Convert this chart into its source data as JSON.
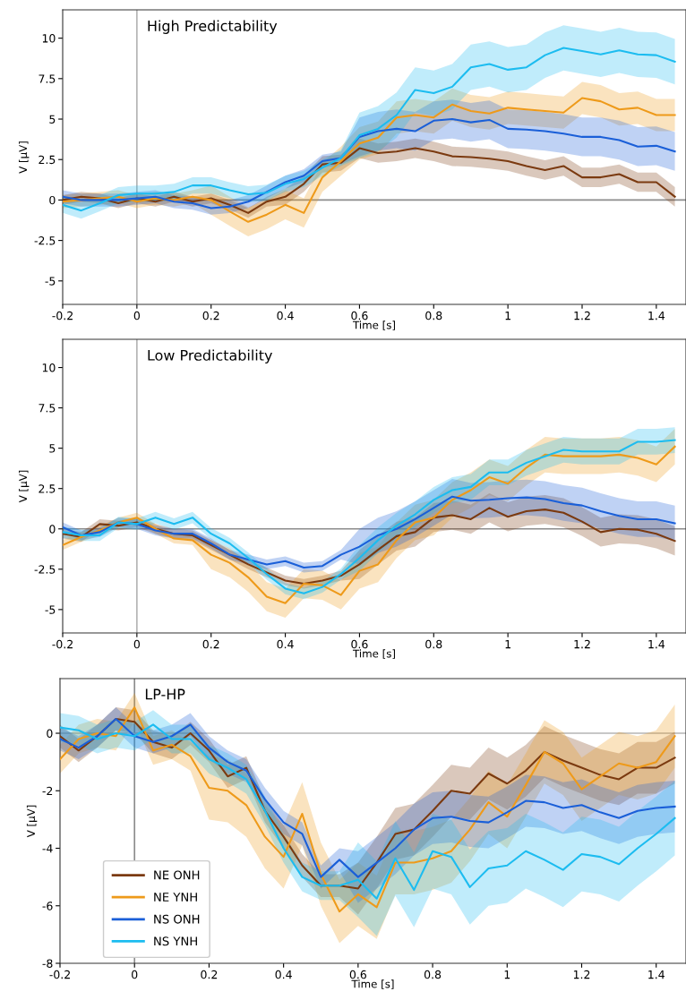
{
  "chart_data": [
    {
      "type": "line",
      "title": "High Predictability",
      "xlabel": "Time [s]",
      "ylabel": "V [µV]",
      "x": [
        -0.2,
        -0.15,
        -0.1,
        -0.05,
        0,
        0.05,
        0.1,
        0.15,
        0.2,
        0.25,
        0.3,
        0.35,
        0.4,
        0.45,
        0.5,
        0.55,
        0.6,
        0.65,
        0.7,
        0.75,
        0.8,
        0.85,
        0.9,
        0.95,
        1.0,
        1.05,
        1.1,
        1.15,
        1.2,
        1.25,
        1.3,
        1.35,
        1.4,
        1.45
      ],
      "xlim": [
        -0.2,
        1.48
      ],
      "ylim": [
        -6.45,
        11.75
      ],
      "xticks": [
        -0.2,
        0,
        0.2,
        0.4,
        0.6,
        0.8,
        1,
        1.2,
        1.4
      ],
      "yticks": [
        -5,
        -2.5,
        0,
        2.5,
        5,
        7.5,
        10
      ],
      "ref_lines": [
        {
          "axis": "x",
          "value": 0,
          "color": "#b5b5b5"
        },
        {
          "axis": "y",
          "value": 0,
          "color": "#8c8c8c"
        }
      ],
      "series": [
        {
          "color": "#7b3a10",
          "values": [
            0,
            0.2,
            0.1,
            -0.2,
            0.1,
            -0.1,
            0.2,
            -0.1,
            0.1,
            -0.3,
            -0.8,
            -0.1,
            0.2,
            1.0,
            2.2,
            2.3,
            3.2,
            2.9,
            3.0,
            3.2,
            3.0,
            2.7,
            2.65,
            2.55,
            2.4,
            2.1,
            1.85,
            2.1,
            1.4,
            1.4,
            1.6,
            1.1,
            1.1,
            0.2
          ],
          "lower": [
            -0.3,
            -0.1,
            -0.2,
            -0.5,
            -0.2,
            -0.4,
            -0.1,
            -0.4,
            -0.2,
            -0.6,
            -1.1,
            -0.4,
            -0.3,
            0.5,
            1.7,
            1.8,
            2.6,
            2.3,
            2.4,
            2.6,
            2.4,
            2.1,
            2.05,
            1.95,
            1.8,
            1.5,
            1.25,
            1.5,
            0.8,
            0.8,
            1.0,
            0.5,
            0.5,
            -0.4
          ],
          "upper": [
            0.3,
            0.5,
            0.4,
            0.1,
            0.4,
            0.2,
            0.5,
            0.2,
            0.4,
            0,
            -0.5,
            0.2,
            0.7,
            1.5,
            2.7,
            2.8,
            3.8,
            3.5,
            3.6,
            3.8,
            3.6,
            3.3,
            3.25,
            3.15,
            3.0,
            2.7,
            2.45,
            2.7,
            2.0,
            2.0,
            2.2,
            1.7,
            1.7,
            0.8
          ]
        },
        {
          "color": "#ee9a1a",
          "values": [
            -0.1,
            0,
            0.1,
            0.2,
            -0.1,
            0.1,
            0,
            0.2,
            0,
            -0.7,
            -1.35,
            -0.9,
            -0.3,
            -0.8,
            1.4,
            2.4,
            3.5,
            3.85,
            5.1,
            5.25,
            5.1,
            5.9,
            5.5,
            5.35,
            5.7,
            5.6,
            5.5,
            5.4,
            6.3,
            6.1,
            5.6,
            5.7,
            5.25,
            5.25
          ],
          "lower": [
            -0.5,
            -0.4,
            -0.3,
            -0.2,
            -0.5,
            -0.3,
            -0.4,
            -0.2,
            -0.9,
            -1.6,
            -2.25,
            -1.8,
            -1.2,
            -1.7,
            0.5,
            1.5,
            2.5,
            2.85,
            4.1,
            4.25,
            4.1,
            4.9,
            4.5,
            4.35,
            4.7,
            4.6,
            4.5,
            4.4,
            5.3,
            5.1,
            4.6,
            4.7,
            4.25,
            4.25
          ],
          "upper": [
            0.3,
            0.4,
            0.5,
            0.6,
            0.3,
            0.5,
            0.4,
            0.6,
            0.9,
            0.2,
            -0.45,
            0,
            0.6,
            0.1,
            2.3,
            3.3,
            4.5,
            4.85,
            6.1,
            6.25,
            6.1,
            6.9,
            6.5,
            6.35,
            6.7,
            6.6,
            6.5,
            6.4,
            7.3,
            7.1,
            6.6,
            6.7,
            6.25,
            6.25
          ]
        },
        {
          "color": "#1a5fd8",
          "values": [
            0.2,
            0,
            0,
            0,
            0.1,
            0.2,
            -0.1,
            -0.2,
            -0.5,
            -0.4,
            -0.1,
            0.5,
            1.1,
            1.5,
            2.4,
            2.6,
            3.9,
            4.25,
            4.4,
            4.25,
            4.9,
            5.0,
            4.8,
            4.95,
            4.4,
            4.35,
            4.25,
            4.1,
            3.9,
            3.9,
            3.7,
            3.3,
            3.35,
            3.0
          ],
          "lower": [
            -0.2,
            -0.4,
            -0.4,
            -0.4,
            -0.3,
            -0.2,
            -0.5,
            -0.6,
            -0.9,
            -0.8,
            -0.5,
            0.1,
            0.7,
            1.1,
            2.0,
            2.2,
            2.7,
            3.05,
            3.2,
            3.05,
            3.7,
            3.8,
            3.6,
            3.75,
            3.2,
            3.15,
            3.05,
            2.9,
            2.7,
            2.7,
            2.5,
            2.1,
            2.15,
            1.8
          ],
          "upper": [
            0.6,
            0.4,
            0.4,
            0.4,
            0.5,
            0.6,
            0.3,
            0.2,
            -0.1,
            0,
            0.3,
            0.9,
            1.5,
            1.9,
            2.8,
            3.0,
            5.1,
            5.45,
            5.6,
            5.45,
            6.1,
            6.2,
            6.0,
            6.15,
            5.6,
            5.55,
            5.45,
            5.3,
            5.1,
            5.1,
            4.9,
            4.5,
            4.55,
            4.2
          ]
        },
        {
          "color": "#1cbcf0",
          "values": [
            -0.3,
            -0.65,
            -0.2,
            0.3,
            0.4,
            0.4,
            0.5,
            0.9,
            0.9,
            0.6,
            0.35,
            0.45,
            1.0,
            1.3,
            2.0,
            2.6,
            4.0,
            4.4,
            5.25,
            6.8,
            6.6,
            7.0,
            8.2,
            8.4,
            8.05,
            8.2,
            8.95,
            9.4,
            9.2,
            9.0,
            9.25,
            9.0,
            8.95,
            8.55
          ],
          "lower": [
            -0.8,
            -1.15,
            -0.7,
            -0.2,
            -0.1,
            -0.1,
            0,
            0.4,
            0.4,
            0.1,
            -0.15,
            -0.05,
            0.5,
            0.8,
            1.5,
            2.1,
            2.6,
            3.0,
            3.85,
            5.4,
            5.2,
            5.6,
            6.8,
            7.0,
            6.65,
            6.8,
            7.55,
            8.0,
            7.8,
            7.6,
            7.85,
            7.6,
            7.55,
            7.15
          ],
          "upper": [
            0.2,
            -0.15,
            0.3,
            0.8,
            0.9,
            0.9,
            1.0,
            1.4,
            1.4,
            1.1,
            0.85,
            0.95,
            1.5,
            1.8,
            2.5,
            3.1,
            5.4,
            5.8,
            6.65,
            8.2,
            8.0,
            8.4,
            9.6,
            9.8,
            9.45,
            9.6,
            10.35,
            10.8,
            10.6,
            10.4,
            10.65,
            10.4,
            10.35,
            9.95
          ]
        }
      ]
    },
    {
      "type": "line",
      "title": "Low Predictability",
      "xlabel": "Time [s]",
      "ylabel": "V [µV]",
      "x": [
        -0.2,
        -0.15,
        -0.1,
        -0.05,
        0,
        0.05,
        0.1,
        0.15,
        0.2,
        0.25,
        0.3,
        0.35,
        0.4,
        0.45,
        0.5,
        0.55,
        0.6,
        0.65,
        0.7,
        0.75,
        0.8,
        0.85,
        0.9,
        0.95,
        1.0,
        1.05,
        1.1,
        1.15,
        1.2,
        1.25,
        1.3,
        1.35,
        1.4,
        1.45
      ],
      "xlim": [
        -0.2,
        1.48
      ],
      "ylim": [
        -6.45,
        11.75
      ],
      "xticks": [
        -0.2,
        0,
        0.2,
        0.4,
        0.6,
        0.8,
        1,
        1.2,
        1.4
      ],
      "yticks": [
        -5,
        -2.5,
        0,
        2.5,
        5,
        7.5,
        10
      ],
      "ref_lines": [
        {
          "axis": "x",
          "value": 0,
          "color": "#b5b5b5"
        },
        {
          "axis": "y",
          "value": 0,
          "color": "#8c8c8c"
        }
      ],
      "series": [
        {
          "color": "#7b3a10",
          "values": [
            -0.3,
            -0.5,
            0.3,
            0.2,
            0.4,
            0,
            -0.3,
            -0.4,
            -1.0,
            -1.6,
            -2.2,
            -2.7,
            -3.2,
            -3.4,
            -3.2,
            -2.9,
            -2.2,
            -1.3,
            -0.45,
            -0.2,
            0.7,
            0.85,
            0.6,
            1.3,
            0.75,
            1.1,
            1.2,
            1.0,
            0.45,
            -0.2,
            0,
            -0.05,
            -0.3,
            -0.75
          ],
          "lower": [
            -0.6,
            -0.8,
            0,
            -0.1,
            0.1,
            -0.3,
            -0.6,
            -0.7,
            -1.3,
            -1.9,
            -2.5,
            -3.0,
            -3.5,
            -3.7,
            -3.5,
            -3.2,
            -3.1,
            -2.2,
            -1.35,
            -1.1,
            -0.2,
            -0.05,
            -0.3,
            0.4,
            -0.15,
            0.2,
            0.3,
            0.1,
            -0.45,
            -1.1,
            -0.9,
            -0.95,
            -1.2,
            -1.65
          ],
          "upper": [
            0,
            -0.2,
            0.6,
            0.5,
            0.7,
            0.3,
            0,
            -0.1,
            -0.7,
            -1.3,
            -1.9,
            -2.4,
            -2.9,
            -3.1,
            -2.9,
            -2.6,
            -1.3,
            -0.4,
            0.45,
            0.7,
            1.6,
            1.75,
            1.5,
            2.2,
            1.65,
            2.0,
            2.1,
            1.9,
            1.35,
            0.7,
            0.9,
            0.85,
            0.6,
            0.15
          ]
        },
        {
          "color": "#ee9a1a",
          "values": [
            -1.0,
            -0.5,
            -0.1,
            0.4,
            0.7,
            0,
            -0.6,
            -0.7,
            -1.6,
            -2.1,
            -3.0,
            -4.2,
            -4.6,
            -3.4,
            -3.5,
            -4.1,
            -2.6,
            -2.2,
            -0.7,
            0.4,
            0.7,
            1.8,
            2.4,
            3.2,
            2.8,
            3.8,
            4.6,
            4.5,
            4.5,
            4.5,
            4.6,
            4.4,
            4.0,
            5.1
          ],
          "lower": [
            -1.3,
            -0.8,
            -0.4,
            0.1,
            0.4,
            -0.3,
            -0.9,
            -1.0,
            -2.5,
            -3.0,
            -3.9,
            -5.1,
            -5.5,
            -4.3,
            -4.4,
            -5.0,
            -3.7,
            -3.3,
            -1.8,
            -0.7,
            -0.4,
            0.7,
            1.3,
            2.1,
            1.7,
            2.7,
            3.5,
            3.4,
            3.4,
            3.4,
            3.5,
            3.3,
            2.9,
            4.0
          ],
          "upper": [
            -0.7,
            -0.2,
            0.2,
            0.7,
            1.0,
            0.3,
            -0.3,
            -0.4,
            -0.7,
            -1.2,
            -2.1,
            -3.3,
            -3.7,
            -2.5,
            -2.6,
            -3.2,
            -1.5,
            -1.1,
            0.4,
            1.5,
            1.8,
            2.9,
            3.5,
            4.3,
            3.9,
            4.9,
            5.7,
            5.6,
            5.6,
            5.6,
            5.7,
            5.5,
            5.1,
            6.2
          ]
        },
        {
          "color": "#1a5fd8",
          "values": [
            0.1,
            -0.4,
            -0.2,
            0.4,
            0.3,
            -0.1,
            -0.3,
            -0.3,
            -0.9,
            -1.6,
            -1.9,
            -2.2,
            -2.0,
            -2.4,
            -2.3,
            -1.6,
            -1.1,
            -0.4,
            0,
            0.6,
            1.3,
            2.0,
            1.75,
            1.8,
            1.9,
            1.95,
            1.85,
            1.6,
            1.45,
            1.1,
            0.8,
            0.6,
            0.6,
            0.35
          ],
          "lower": [
            -0.2,
            -0.7,
            -0.5,
            0.1,
            0,
            -0.4,
            -0.6,
            -0.6,
            -1.2,
            -1.9,
            -2.2,
            -2.5,
            -2.3,
            -2.7,
            -2.6,
            -1.9,
            -2.2,
            -1.5,
            -1.1,
            -0.5,
            0.2,
            0.9,
            0.65,
            0.7,
            0.8,
            0.85,
            0.75,
            0.5,
            0.35,
            0,
            -0.3,
            -0.5,
            -0.5,
            -0.75
          ],
          "upper": [
            0.4,
            -0.1,
            0.1,
            0.7,
            0.6,
            0.2,
            0,
            0,
            -0.6,
            -1.3,
            -1.6,
            -1.9,
            -1.7,
            -2.1,
            -2.0,
            -1.3,
            0,
            0.7,
            1.1,
            1.7,
            2.4,
            3.1,
            2.85,
            2.9,
            3.0,
            3.05,
            2.95,
            2.7,
            2.55,
            2.2,
            1.9,
            1.7,
            1.7,
            1.45
          ]
        },
        {
          "color": "#1cbcf0",
          "values": [
            -0.2,
            -0.4,
            -0.4,
            0.4,
            0.3,
            0.7,
            0.3,
            0.7,
            -0.3,
            -0.9,
            -1.8,
            -2.8,
            -3.7,
            -4.0,
            -3.6,
            -2.8,
            -1.8,
            -0.7,
            0.2,
            0.9,
            1.8,
            2.4,
            2.6,
            3.5,
            3.5,
            4.1,
            4.5,
            4.9,
            4.8,
            4.8,
            4.8,
            5.4,
            5.4,
            5.5
          ],
          "lower": [
            -0.55,
            -0.75,
            -0.75,
            0.05,
            -0.05,
            0.35,
            -0.05,
            0.35,
            -0.65,
            -1.25,
            -2.15,
            -3.15,
            -4.05,
            -4.35,
            -3.95,
            -3.15,
            -2.6,
            -1.5,
            -0.6,
            0.1,
            1.0,
            1.6,
            1.8,
            2.7,
            2.7,
            3.3,
            3.7,
            4.1,
            4.0,
            4.0,
            4.0,
            4.6,
            4.6,
            4.7
          ],
          "upper": [
            0.15,
            -0.05,
            -0.05,
            0.75,
            0.65,
            1.05,
            0.65,
            1.05,
            0.05,
            -0.55,
            -1.45,
            -2.45,
            -3.35,
            -3.65,
            -3.25,
            -2.45,
            -1.0,
            0.1,
            1.0,
            1.7,
            2.6,
            3.2,
            3.4,
            4.3,
            4.3,
            4.9,
            5.3,
            5.7,
            5.6,
            5.6,
            5.6,
            6.2,
            6.2,
            6.3
          ]
        }
      ]
    },
    {
      "type": "line",
      "title": "LP-HP",
      "xlabel": "Time [s]",
      "ylabel": "V [µV]",
      "legend": "bottom left",
      "x": [
        -0.2,
        -0.15,
        -0.1,
        -0.05,
        0,
        0.05,
        0.1,
        0.15,
        0.2,
        0.25,
        0.3,
        0.35,
        0.4,
        0.45,
        0.5,
        0.55,
        0.6,
        0.65,
        0.7,
        0.75,
        0.8,
        0.85,
        0.9,
        0.95,
        1.0,
        1.05,
        1.1,
        1.15,
        1.2,
        1.25,
        1.3,
        1.35,
        1.4,
        1.45
      ],
      "xlim": [
        -0.2,
        1.48
      ],
      "ylim": [
        -8,
        1.9
      ],
      "xticks": [
        -0.2,
        0,
        0.2,
        0.4,
        0.6,
        0.8,
        1,
        1.2,
        1.4
      ],
      "yticks": [
        -8,
        -6,
        -4,
        -2,
        0
      ],
      "ref_lines": [
        {
          "axis": "x",
          "value": 0,
          "color": "#8c8c8c"
        },
        {
          "axis": "y",
          "value": 0,
          "color": "#b5b5b5"
        }
      ],
      "series": [
        {
          "name": "NE ONH",
          "color": "#7b3a10",
          "values": [
            -0.1,
            -0.6,
            -0.1,
            0.5,
            0.4,
            -0.3,
            -0.5,
            0,
            -0.6,
            -1.5,
            -1.2,
            -2.7,
            -3.6,
            -4.6,
            -5.3,
            -5.3,
            -5.4,
            -4.5,
            -3.5,
            -3.35,
            -2.7,
            -2.0,
            -2.1,
            -1.4,
            -1.75,
            -1.3,
            -0.65,
            -0.95,
            -1.2,
            -1.45,
            -1.6,
            -1.2,
            -1.2,
            -0.85
          ],
          "lower": [
            -0.5,
            -1.0,
            -0.5,
            0.1,
            0,
            -0.7,
            -0.9,
            -0.4,
            -1.0,
            -1.9,
            -1.6,
            -3.1,
            -4.0,
            -5.0,
            -5.7,
            -5.7,
            -6.3,
            -5.4,
            -4.4,
            -4.25,
            -3.6,
            -2.9,
            -3.0,
            -2.3,
            -2.65,
            -2.2,
            -1.55,
            -1.85,
            -2.1,
            -2.35,
            -2.5,
            -2.1,
            -2.1,
            -1.75
          ],
          "upper": [
            0.3,
            -0.2,
            0.3,
            0.9,
            0.8,
            0.1,
            -0.1,
            0.4,
            -0.2,
            -1.1,
            -0.8,
            -2.3,
            -3.2,
            -4.2,
            -4.9,
            -4.9,
            -4.5,
            -3.6,
            -2.6,
            -2.45,
            -1.8,
            -1.1,
            -1.2,
            -0.5,
            -0.85,
            -0.4,
            0.25,
            -0.05,
            -0.3,
            -0.55,
            -0.7,
            -0.3,
            -0.3,
            0.05
          ]
        },
        {
          "name": "NE YNH",
          "color": "#ee9a1a",
          "values": [
            -0.9,
            -0.2,
            0,
            -0.1,
            0.9,
            -0.6,
            -0.4,
            -0.8,
            -1.9,
            -2.0,
            -2.5,
            -3.6,
            -4.3,
            -2.8,
            -4.9,
            -6.2,
            -5.6,
            -6.05,
            -4.5,
            -4.5,
            -4.35,
            -4.1,
            -3.35,
            -2.4,
            -2.9,
            -1.8,
            -0.65,
            -1.05,
            -1.95,
            -1.5,
            -1.05,
            -1.2,
            -1.0,
            -0.1
          ],
          "lower": [
            -1.4,
            -0.7,
            -0.5,
            -0.6,
            0.4,
            -1.1,
            -0.9,
            -1.3,
            -3.0,
            -3.1,
            -3.6,
            -4.7,
            -5.4,
            -3.9,
            -6.0,
            -7.3,
            -6.7,
            -7.15,
            -5.6,
            -5.6,
            -5.45,
            -5.2,
            -4.45,
            -3.5,
            -4.0,
            -2.9,
            -1.75,
            -2.15,
            -3.05,
            -2.6,
            -2.15,
            -2.3,
            -2.1,
            -1.2
          ],
          "upper": [
            -0.4,
            0.3,
            0.5,
            0.4,
            1.4,
            -0.1,
            0.1,
            -0.3,
            -0.8,
            -0.9,
            -1.4,
            -2.5,
            -3.2,
            -1.7,
            -3.8,
            -5.1,
            -4.5,
            -4.95,
            -3.4,
            -3.4,
            -3.25,
            -3.0,
            -2.25,
            -1.3,
            -1.8,
            -0.7,
            0.45,
            0.05,
            -0.85,
            -0.4,
            0.05,
            -0.1,
            0.1,
            1.0
          ]
        },
        {
          "name": "NS ONH",
          "color": "#1a5fd8",
          "values": [
            -0.2,
            -0.5,
            -0.1,
            0.5,
            -0.1,
            -0.3,
            -0.1,
            0.3,
            -0.5,
            -1.0,
            -1.3,
            -2.3,
            -3.1,
            -3.5,
            -5.0,
            -4.4,
            -5.0,
            -4.5,
            -4.0,
            -3.35,
            -2.95,
            -2.9,
            -3.05,
            -3.1,
            -2.75,
            -2.35,
            -2.4,
            -2.6,
            -2.5,
            -2.75,
            -2.95,
            -2.7,
            -2.6,
            -2.55
          ],
          "lower": [
            -0.6,
            -0.9,
            -0.5,
            0.1,
            -0.5,
            -0.7,
            -0.5,
            -0.1,
            -0.9,
            -1.4,
            -1.7,
            -2.7,
            -3.5,
            -3.9,
            -5.4,
            -4.8,
            -5.9,
            -5.4,
            -4.9,
            -4.25,
            -3.85,
            -3.8,
            -3.95,
            -4.0,
            -3.65,
            -3.25,
            -3.3,
            -3.5,
            -3.4,
            -3.65,
            -3.85,
            -3.6,
            -3.5,
            -3.45
          ],
          "upper": [
            0.2,
            -0.1,
            0.3,
            0.9,
            0.3,
            0.1,
            0.3,
            0.7,
            -0.1,
            -0.6,
            -0.9,
            -1.9,
            -2.7,
            -3.1,
            -4.6,
            -4.0,
            -4.1,
            -3.6,
            -3.1,
            -2.45,
            -2.05,
            -2.0,
            -2.15,
            -2.2,
            -1.85,
            -1.45,
            -1.5,
            -1.7,
            -1.6,
            -1.85,
            -2.05,
            -1.8,
            -1.7,
            -1.65
          ]
        },
        {
          "name": "NS YNH",
          "color": "#1cbcf0",
          "values": [
            0.2,
            0.1,
            -0.2,
            0,
            -0.1,
            0.3,
            -0.2,
            -0.2,
            -0.9,
            -1.2,
            -1.6,
            -2.7,
            -4.0,
            -5.0,
            -5.3,
            -5.3,
            -5.1,
            -5.75,
            -4.35,
            -5.45,
            -4.1,
            -4.3,
            -5.35,
            -4.7,
            -4.6,
            -4.1,
            -4.4,
            -4.75,
            -4.2,
            -4.3,
            -4.55,
            -4.0,
            -3.5,
            -2.95
          ],
          "lower": [
            -0.3,
            -0.4,
            -0.7,
            -0.5,
            -0.6,
            -0.2,
            -0.7,
            -0.7,
            -1.4,
            -1.7,
            -2.1,
            -3.2,
            -4.5,
            -5.5,
            -5.8,
            -5.8,
            -6.4,
            -7.05,
            -5.65,
            -6.75,
            -5.4,
            -5.6,
            -6.65,
            -6.0,
            -5.9,
            -5.4,
            -5.7,
            -6.05,
            -5.5,
            -5.6,
            -5.85,
            -5.3,
            -4.8,
            -4.25
          ],
          "upper": [
            0.7,
            0.6,
            0.3,
            0.5,
            0.4,
            0.8,
            0.3,
            0.3,
            -0.4,
            -0.7,
            -1.1,
            -2.2,
            -3.5,
            -4.5,
            -4.8,
            -4.8,
            -3.8,
            -4.45,
            -3.05,
            -4.15,
            -2.8,
            -3.0,
            -4.05,
            -3.4,
            -3.3,
            -2.8,
            -3.1,
            -3.45,
            -2.9,
            -3.0,
            -3.25,
            -2.7,
            -2.2,
            -1.65
          ]
        }
      ]
    }
  ]
}
